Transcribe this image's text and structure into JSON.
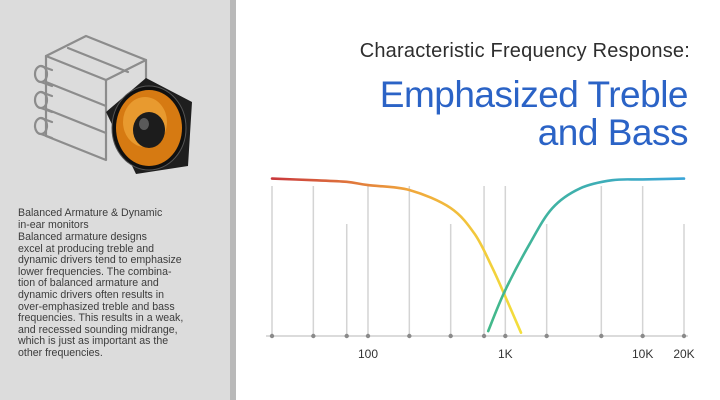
{
  "sidebar": {
    "heading": "Balanced Armature & Dynamic\nin-ear monitors",
    "body": "Balanced armature designs\nexcel at producing treble and\ndynamic drivers tend to emphasize\nlower frequencies. The combina-\ntion of balanced armature and\ndynamic drivers often results in\nover-emphasized treble and bass\nfrequencies. This results in a weak,\nand recessed sounding midrange,\nwhich is just as important as the\nother frequencies."
  },
  "colors": {
    "title_blue": "#2b63c6",
    "woofer_orange": "#d67a12",
    "bass_curve_start": "#c9373c",
    "bass_curve_mid": "#f0a63c",
    "bass_curve_end": "#f3df3c",
    "treble_curve_start": "#43b98a",
    "treble_curve_end": "#3aa5d8"
  },
  "icons": {
    "device": "armature-driver-block-icon",
    "speaker": "speaker-woofer-icon"
  },
  "chart_data": {
    "type": "line",
    "subtitle": "Characteristic Frequency Response:",
    "title_lines": [
      "Emphasized Treble",
      "and Bass"
    ],
    "x_scale": "log",
    "x_tick_labels": [
      {
        "label": "100",
        "x": 100
      },
      {
        "label": "1K",
        "x": 1000
      },
      {
        "label": "10K",
        "x": 10000
      },
      {
        "label": "20K",
        "x": 20000
      }
    ],
    "xlim": [
      20,
      20000
    ],
    "grid_lines_x": [
      20,
      40,
      70,
      100,
      200,
      400,
      700,
      1000,
      2000,
      5000,
      10000,
      20000
    ],
    "ylim": [
      0,
      1
    ],
    "y_ticks_shown": false,
    "series": [
      {
        "points": [
          [
            20,
            0.96
          ],
          [
            40,
            0.95
          ],
          [
            70,
            0.94
          ],
          [
            100,
            0.92
          ],
          [
            200,
            0.89
          ],
          [
            400,
            0.78
          ],
          [
            600,
            0.62
          ],
          [
            800,
            0.42
          ],
          [
            1000,
            0.24
          ],
          [
            1300,
            0.02
          ]
        ]
      },
      {
        "points": [
          [
            750,
            0.03
          ],
          [
            1000,
            0.28
          ],
          [
            1500,
            0.56
          ],
          [
            2200,
            0.78
          ],
          [
            3500,
            0.9
          ],
          [
            6000,
            0.95
          ],
          [
            10000,
            0.955
          ],
          [
            20000,
            0.96
          ]
        ]
      }
    ]
  }
}
